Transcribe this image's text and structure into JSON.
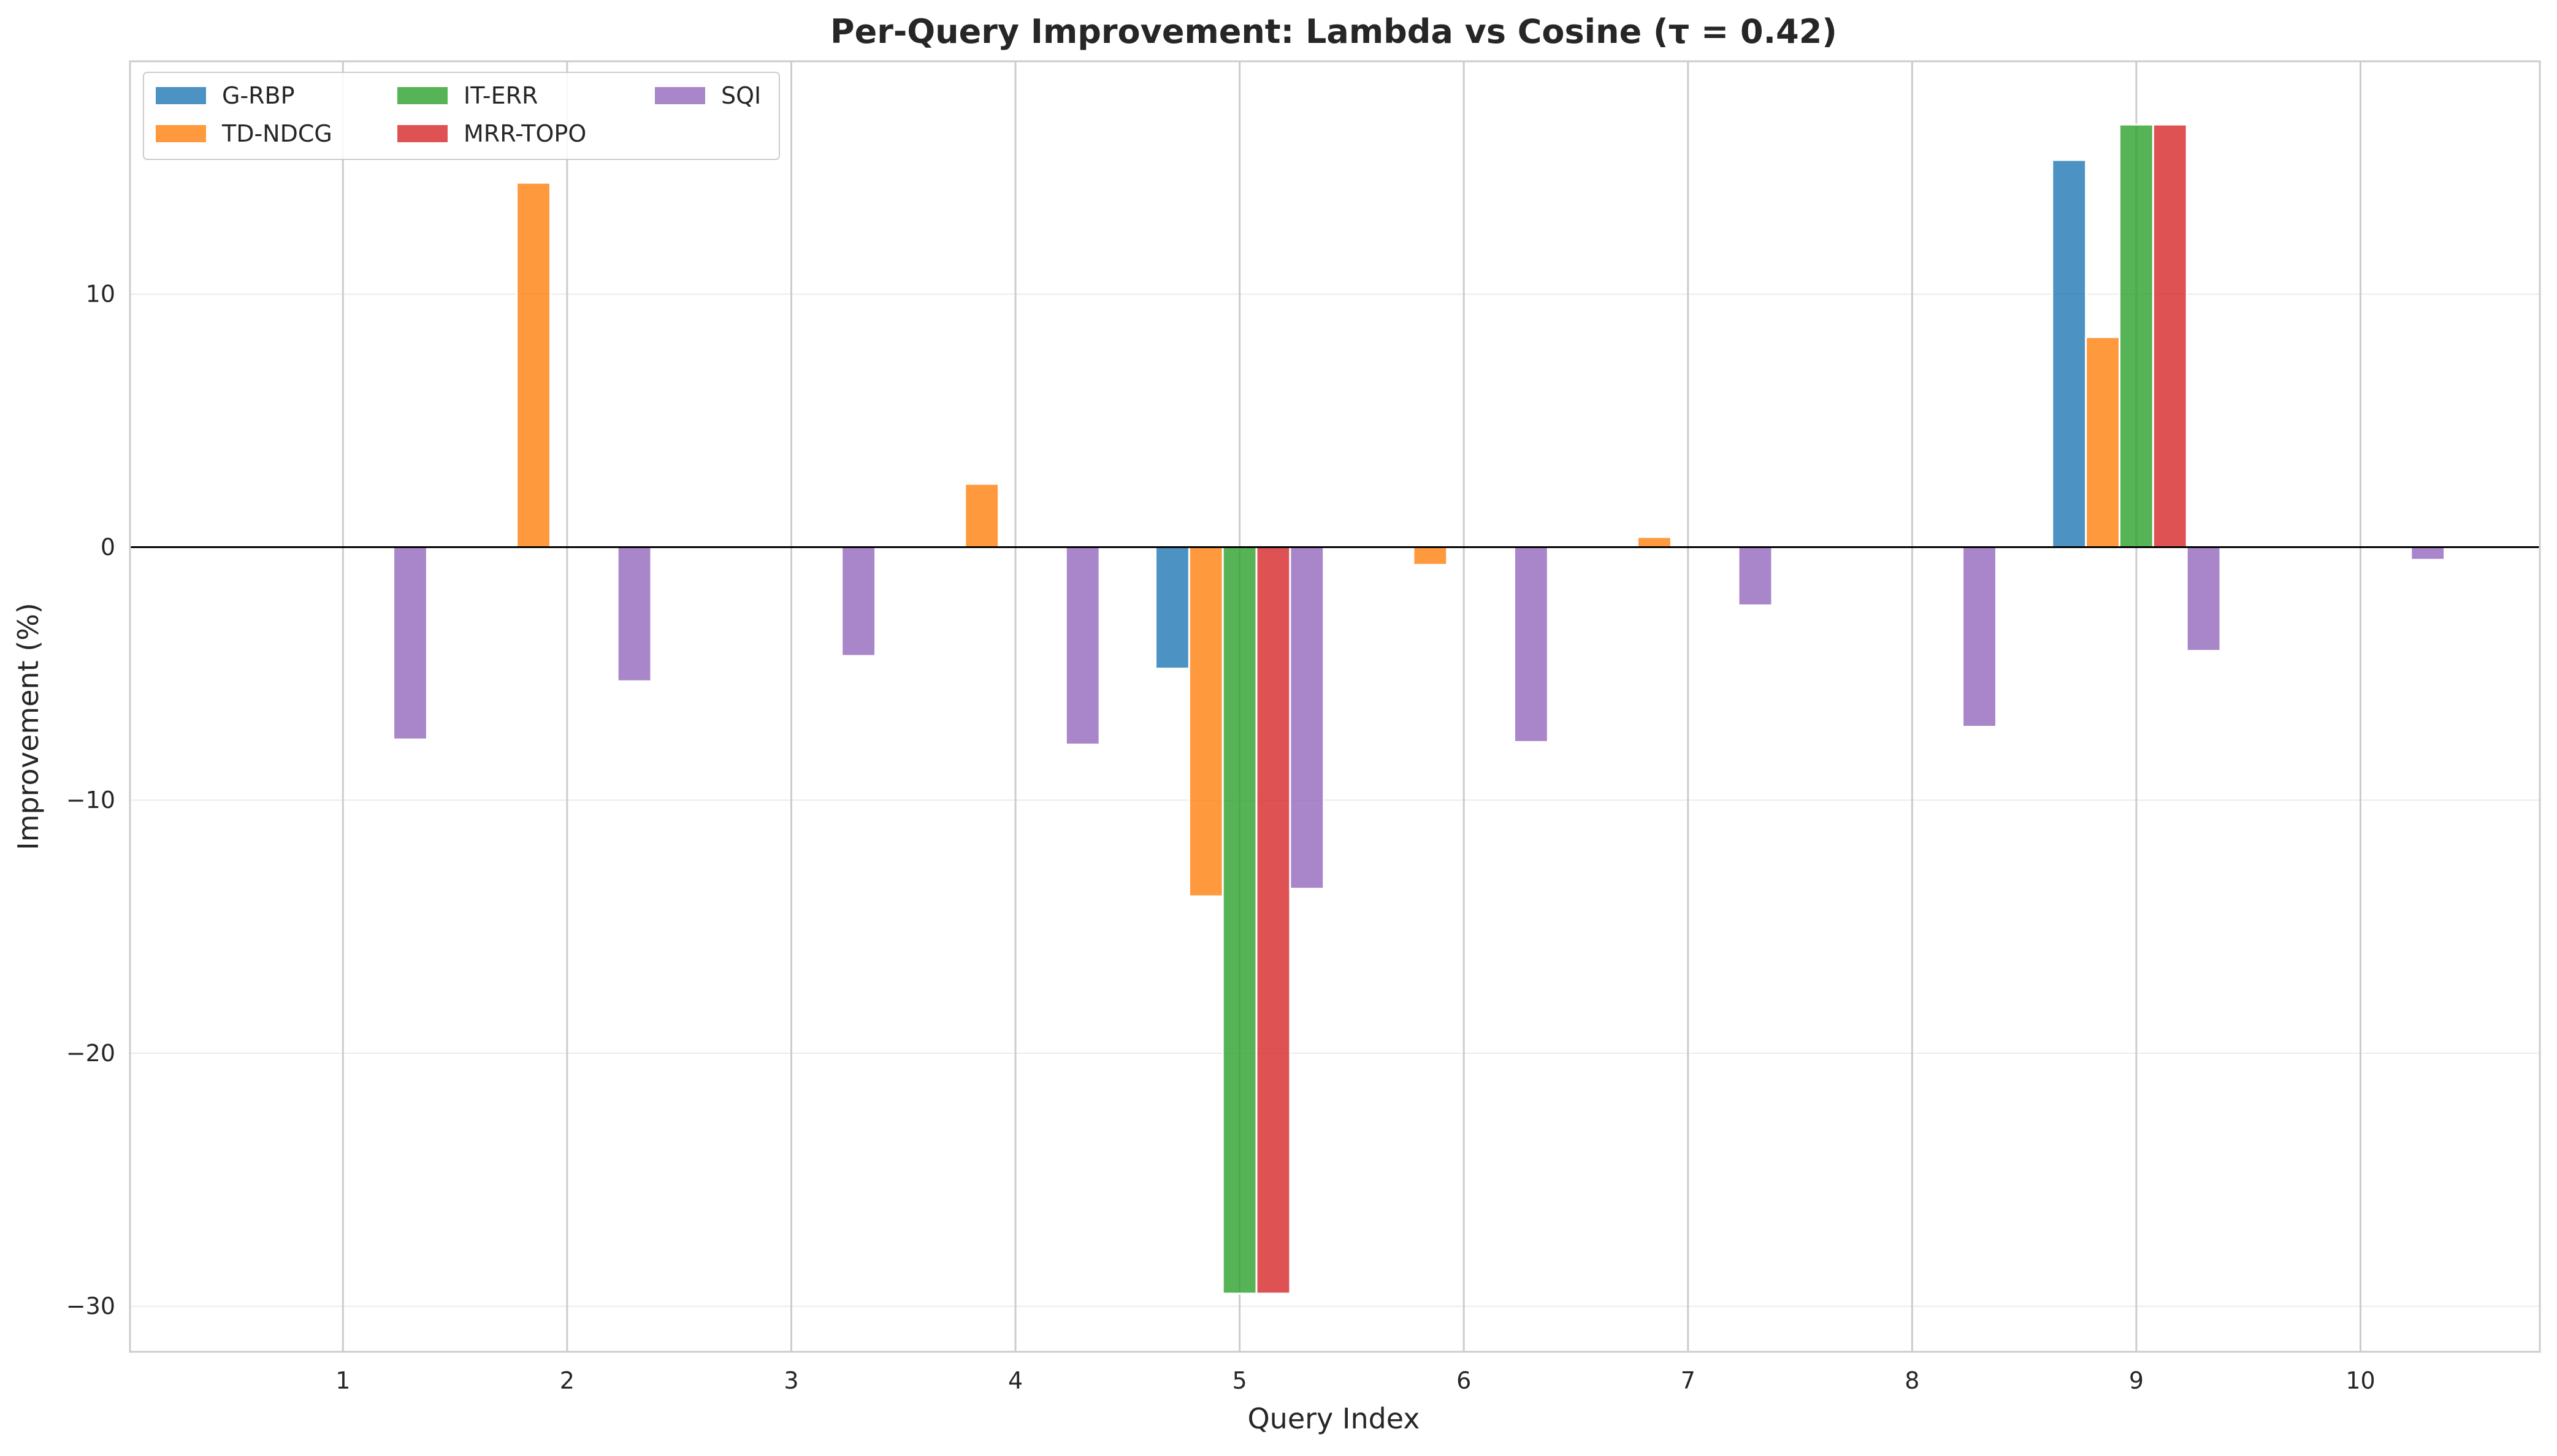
{
  "chart_data": {
    "type": "bar",
    "title": "Per-Query Improvement: Lambda vs Cosine (τ = 0.42)",
    "xlabel": "Query Index",
    "ylabel": "Improvement (%)",
    "categories": [
      "1",
      "2",
      "3",
      "4",
      "5",
      "6",
      "7",
      "8",
      "9",
      "10"
    ],
    "xlim": [
      0.05,
      10.8
    ],
    "ylim": [
      -31.8,
      19.2
    ],
    "yticks": [
      10,
      0,
      -10,
      -20,
      -30
    ],
    "ytick_labels": [
      "10",
      "0",
      "−10",
      "−20",
      "−30"
    ],
    "grid": true,
    "legend_position": "top-left",
    "series": [
      {
        "name": "G-RBP",
        "color": "#1f77b4",
        "values": [
          0,
          0,
          0,
          0,
          -4.8,
          0,
          0,
          0,
          15.3,
          0
        ]
      },
      {
        "name": "TD-NDCG",
        "color": "#ff7f0e",
        "values": [
          0,
          14.4,
          0,
          2.5,
          -13.8,
          -0.7,
          0.4,
          0,
          8.3,
          0
        ]
      },
      {
        "name": "IT-ERR",
        "color": "#2ca02c",
        "values": [
          0,
          0,
          0,
          0,
          -29.5,
          0,
          0,
          0,
          16.7,
          0
        ]
      },
      {
        "name": "MRR-TOPO",
        "color": "#d62728",
        "values": [
          0,
          0,
          0,
          0,
          -29.5,
          0,
          0,
          0,
          16.7,
          0
        ]
      },
      {
        "name": "SQI",
        "color": "#9467bd",
        "values": [
          -7.6,
          -5.3,
          -4.3,
          -7.8,
          -13.5,
          -7.7,
          -2.3,
          -7.1,
          -4.1,
          -0.5
        ]
      }
    ]
  }
}
